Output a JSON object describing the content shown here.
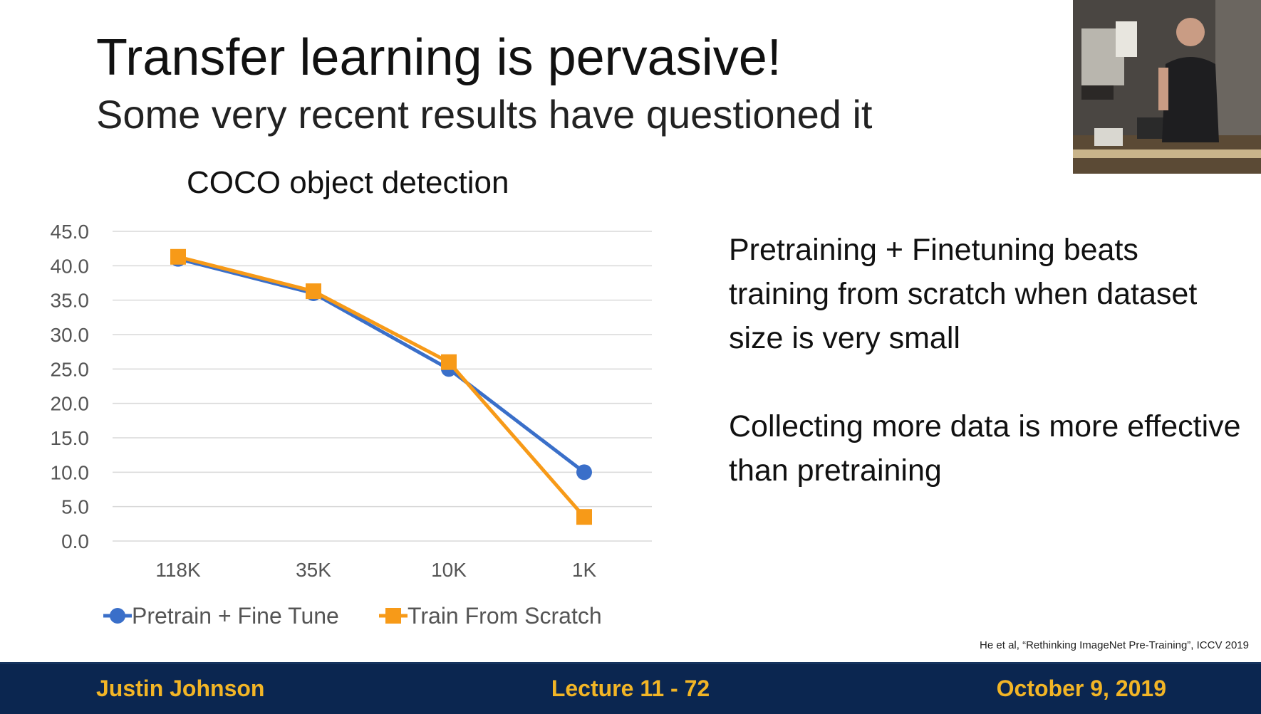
{
  "slide": {
    "title": "Transfer learning is pervasive!",
    "subtitle": "Some very recent results have questioned it",
    "bullets": [
      "Pretraining + Finetuning beats training from scratch when dataset size is very small",
      "Collecting more data is more effective than pretraining"
    ],
    "citation": "He et al, “Rethinking ImageNet Pre-Training”, ICCV 2019"
  },
  "footer": {
    "author": "Justin Johnson",
    "lecture": "Lecture 11 - 72",
    "date": "October 9, 2019"
  },
  "chart_data": {
    "type": "line",
    "title": "COCO object detection",
    "categories": [
      "118K",
      "35K",
      "10K",
      "1K"
    ],
    "series": [
      {
        "name": "Pretrain + Fine Tune",
        "values": [
          41.0,
          36.0,
          25.0,
          10.0
        ],
        "color": "#3a6fc9",
        "marker": "circle"
      },
      {
        "name": "Train From Scratch",
        "values": [
          41.3,
          36.3,
          26.0,
          3.5
        ],
        "color": "#f79a18",
        "marker": "square"
      }
    ],
    "ylim": [
      0,
      45
    ],
    "ytick_step": 5,
    "ytick_decimals": 1,
    "xlabel": "",
    "ylabel": "",
    "grid": true,
    "legend": "bottom"
  }
}
